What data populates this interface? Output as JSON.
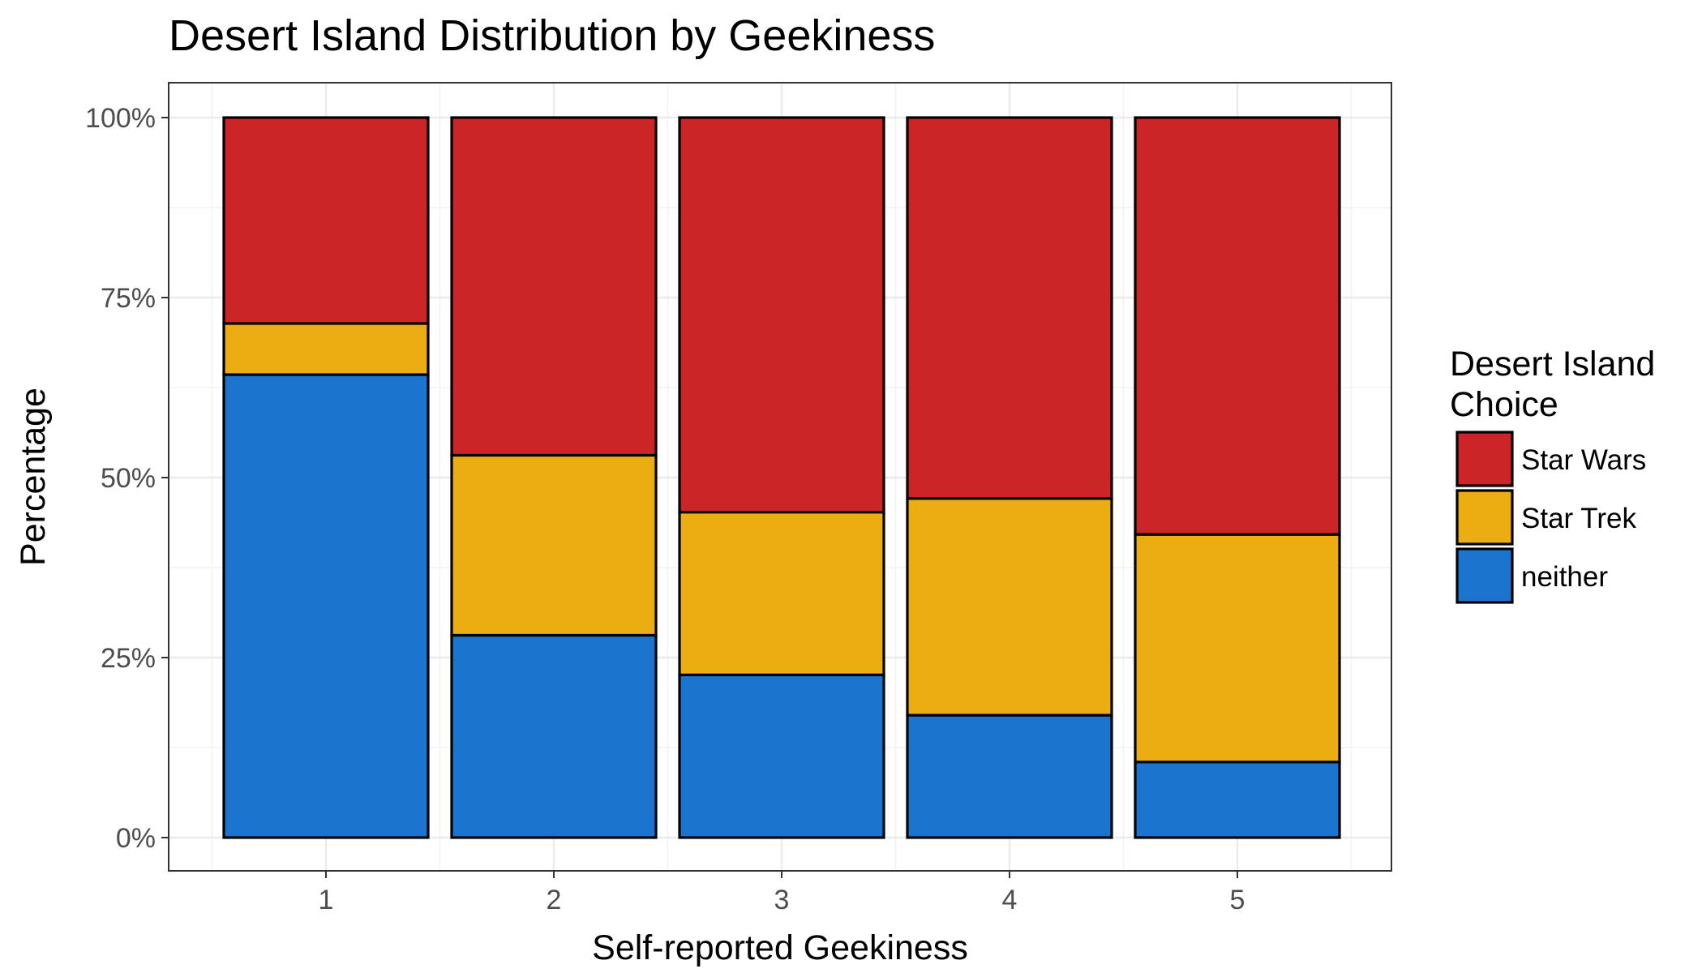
{
  "chart_data": {
    "type": "bar",
    "stacked": true,
    "title": "Desert Island Distribution by Geekiness",
    "xlabel": "Self-reported Geekiness",
    "ylabel": "Percentage",
    "categories": [
      "1",
      "2",
      "3",
      "4",
      "5"
    ],
    "ylim": [
      0,
      100
    ],
    "y_ticks": [
      "0%",
      "25%",
      "50%",
      "75%",
      "100%"
    ],
    "grid": true,
    "legend": {
      "title_line1": "Desert Island",
      "title_line2": "Choice",
      "placement": "right",
      "entries": [
        "Star Wars",
        "Star Trek",
        "neither"
      ]
    },
    "series": [
      {
        "name": "neither",
        "color": "#1b75cf",
        "values": [
          64.3,
          28.1,
          22.6,
          17.0,
          10.5
        ]
      },
      {
        "name": "Star Trek",
        "color": "#ebad12",
        "values": [
          7.1,
          25.0,
          22.6,
          30.1,
          31.6
        ]
      },
      {
        "name": "Star Wars",
        "color": "#cb2527",
        "values": [
          28.6,
          46.9,
          54.8,
          52.9,
          57.9
        ]
      }
    ]
  }
}
